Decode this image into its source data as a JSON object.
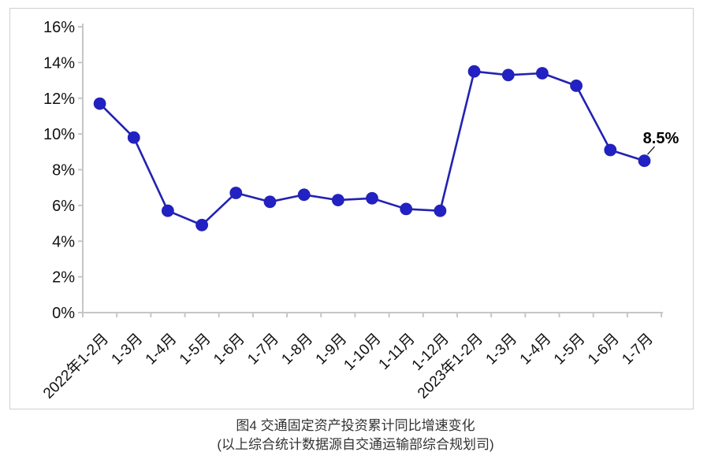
{
  "figure": {
    "caption_line1": "图4  交通固定资产投资累计同比增速变化",
    "caption_line2": "(以上综合统计数据源自交通运输部综合规划司)"
  },
  "chart_data": {
    "type": "line",
    "title": "",
    "xlabel": "",
    "ylabel": "",
    "categories": [
      "2022年1-2月",
      "1-3月",
      "1-4月",
      "1-5月",
      "1-6月",
      "1-7月",
      "1-8月",
      "1-9月",
      "1-10月",
      "1-11月",
      "1-12月",
      "2023年1-2月",
      "1-3月",
      "1-4月",
      "1-5月",
      "1-6月",
      "1-7月"
    ],
    "series": [
      {
        "name": "交通固定资产投资累计同比增速",
        "values": [
          11.7,
          9.8,
          5.7,
          4.9,
          6.7,
          6.2,
          6.6,
          6.3,
          6.4,
          5.8,
          5.7,
          13.5,
          13.3,
          13.4,
          12.7,
          9.1,
          8.5
        ]
      }
    ],
    "ylim": [
      0,
      16
    ],
    "ytick_step": 2,
    "ytick_labels": [
      "0%",
      "2%",
      "4%",
      "6%",
      "8%",
      "10%",
      "12%",
      "14%",
      "16%"
    ],
    "grid": false,
    "legend_position": "none",
    "annotation": {
      "text": "8.5%",
      "point_index": 16
    },
    "colors": {
      "line": "#2222b2",
      "marker": "#2121c4",
      "axis": "#c6c6c6",
      "tick_label": "#111111",
      "annotation_text": "#000000",
      "frame_border": "#cfcfcf"
    }
  }
}
